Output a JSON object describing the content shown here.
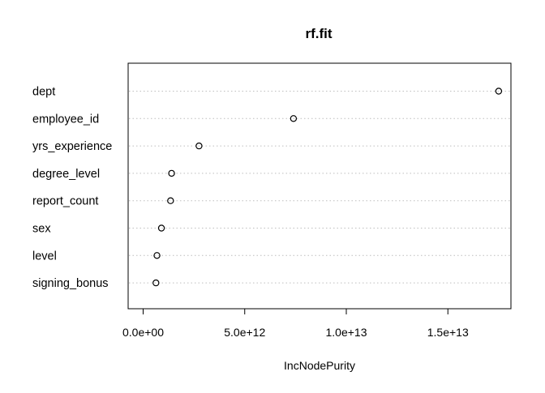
{
  "chart_data": {
    "type": "scatter",
    "title": "rf.fit",
    "xlabel": "IncNodePurity",
    "ylabel": "",
    "categories": [
      "dept",
      "employee_id",
      "yrs_experience",
      "degree_level",
      "report_count",
      "sex",
      "level",
      "signing_bonus"
    ],
    "values": [
      17500000000000.0,
      7400000000000.0,
      2750000000000.0,
      1400000000000.0,
      1350000000000.0,
      900000000000.0,
      680000000000.0,
      630000000000.0
    ],
    "xlim": [
      0,
      18000000000000.0
    ],
    "xticks": [
      0,
      5000000000000.0,
      10000000000000.0,
      15000000000000.0
    ],
    "xtick_labels": [
      "0.0e+00",
      "5.0e+12",
      "1.0e+13",
      "1.5e+13"
    ],
    "grid": "horizontal dotted guide lines",
    "marker": "open-circle",
    "colors": {
      "marker": "#000000",
      "guide": "#bebebe",
      "axes": "#000000"
    }
  }
}
